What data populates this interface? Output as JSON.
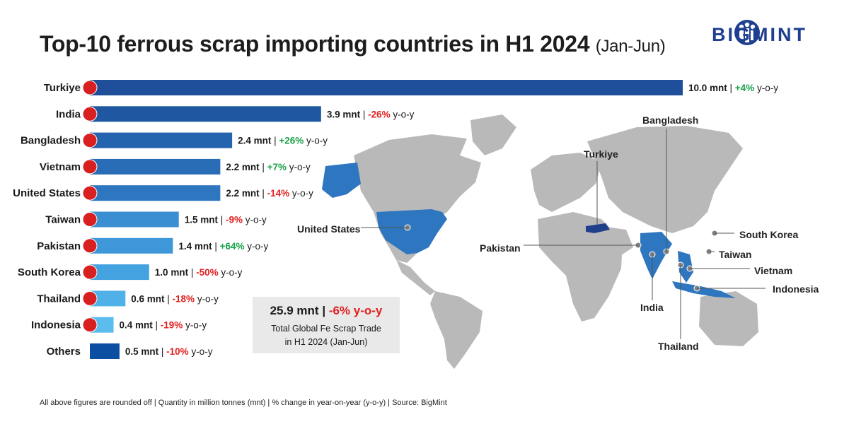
{
  "header": {
    "title_main": "Top-10 ferrous scrap importing countries in H1 2024",
    "title_sub": "(Jan-Jun)",
    "brand": "BIGMINT"
  },
  "chart_data": {
    "type": "bar",
    "orientation": "horizontal",
    "categories": [
      "Turkiye",
      "India",
      "Bangladesh",
      "Vietnam",
      "United States",
      "Taiwan",
      "Pakistan",
      "South Korea",
      "Thailand",
      "Indonesia",
      "Others"
    ],
    "values": [
      10.0,
      3.9,
      2.4,
      2.2,
      2.2,
      1.5,
      1.4,
      1.0,
      0.6,
      0.4,
      0.5
    ],
    "value_labels": [
      "10.0 mnt",
      "3.9 mnt",
      "2.4 mnt",
      "2.2 mnt",
      "2.2 mnt",
      "1.5 mnt",
      "1.4 mnt",
      "1.0 mnt",
      "0.6 mnt",
      "0.4 mnt",
      "0.5 mnt"
    ],
    "yoy_changes": [
      "+4%",
      "-26%",
      "+26%",
      "+7%",
      "-14%",
      "-9%",
      "+64%",
      "-50%",
      "-18%",
      "-19%",
      "-10%"
    ],
    "yoy_suffix": "y-o-y",
    "unit": "mnt",
    "bar_colors": [
      "#1f4f9a",
      "#1f57a0",
      "#2463ae",
      "#2a6db7",
      "#2e76bf",
      "#3a8fd2",
      "#3e97d9",
      "#44a2e0",
      "#4fb1e8",
      "#5cbcee",
      "#0b4ea2"
    ],
    "positive_color": "#1aa14a",
    "negative_color": "#e02020"
  },
  "summary": {
    "total_value": "25.9 mnt",
    "separator": "|",
    "total_change": "-6% y-o-y",
    "line2": "Total Global Fe Scrap Trade",
    "line3": "in  H1 2024 (Jan-Jun)"
  },
  "map_labels": {
    "bangladesh": "Bangladesh",
    "turkiye": "Turkiye",
    "united_states": "United States",
    "pakistan": "Pakistan",
    "south_korea": "South Korea",
    "taiwan": "Taiwan",
    "vietnam": "Vietnam",
    "indonesia": "Indonesia",
    "india": "India",
    "thailand": "Thailand"
  },
  "footer": "All above figures are rounded off | Quantity in million tonnes (mnt) | % change in year-on-year (y-o-y) | Source: BigMint"
}
